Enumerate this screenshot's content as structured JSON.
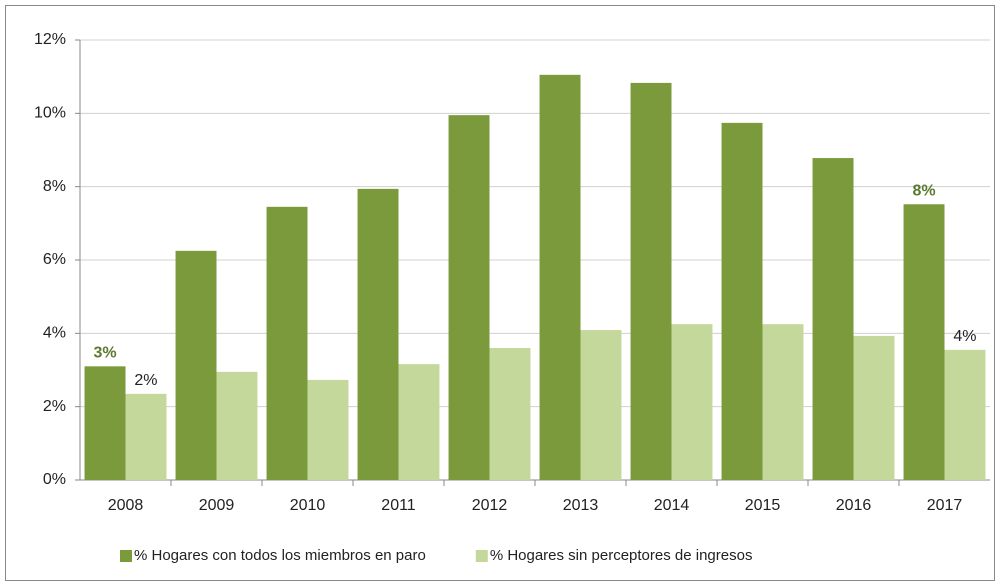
{
  "chart_data": {
    "type": "bar",
    "categories": [
      "2008",
      "2009",
      "2010",
      "2011",
      "2012",
      "2013",
      "2014",
      "2015",
      "2016",
      "2017"
    ],
    "series": [
      {
        "name": "% Hogares con todos los miembros en paro",
        "color": "#7a9a3c",
        "values": [
          3.1,
          6.25,
          7.45,
          7.94,
          9.95,
          11.05,
          10.83,
          9.74,
          8.78,
          7.52
        ],
        "value_labels": [
          "3%",
          null,
          null,
          null,
          null,
          null,
          null,
          null,
          null,
          "8%"
        ],
        "label_color": "#5a7a2e"
      },
      {
        "name": "% Hogares sin perceptores de ingresos",
        "color": "#c4d89c",
        "values": [
          2.35,
          2.95,
          2.73,
          3.16,
          3.6,
          4.09,
          4.25,
          4.25,
          3.93,
          3.55
        ],
        "value_labels": [
          "2%",
          null,
          null,
          null,
          null,
          null,
          null,
          null,
          null,
          "4%"
        ],
        "label_color": "#222222"
      }
    ],
    "ylim": [
      0,
      12
    ],
    "yticks": [
      {
        "value": 0,
        "label": "0%"
      },
      {
        "value": 2,
        "label": "2%"
      },
      {
        "value": 4,
        "label": "4%"
      },
      {
        "value": 6,
        "label": "6%"
      },
      {
        "value": 8,
        "label": "8%"
      },
      {
        "value": 10,
        "label": "10%"
      },
      {
        "value": 12,
        "label": "12%"
      }
    ],
    "grid": true,
    "legend": "bottom"
  }
}
